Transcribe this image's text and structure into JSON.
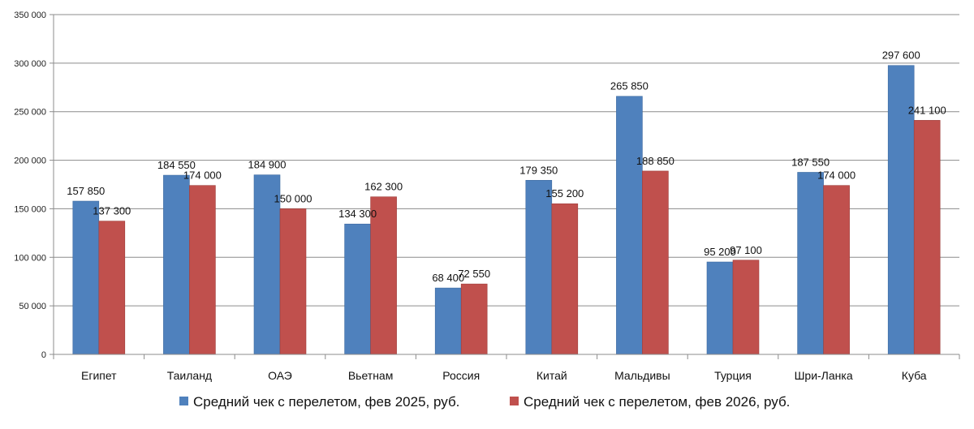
{
  "chart_data": {
    "type": "bar",
    "categories": [
      "Египет",
      "Таиланд",
      "ОАЭ",
      "Вьетнам",
      "Россия",
      "Китай",
      "Мальдивы",
      "Турция",
      "Шри-Ланка",
      "Куба"
    ],
    "series": [
      {
        "name": "Средний чек с перелетом, фев 2025, руб.",
        "color": "#4F81BD",
        "values": [
          157850,
          184550,
          184900,
          134300,
          68400,
          179350,
          265850,
          95200,
          187550,
          297600
        ],
        "labels": [
          "157 850",
          "184 550",
          "184 900",
          "134 300",
          "68 400",
          "179 350",
          "265 850",
          "95 200",
          "187 550",
          "297 600"
        ]
      },
      {
        "name": "Средний чек с перелетом, фев 2026, руб.",
        "color": "#C0504D",
        "values": [
          137300,
          174000,
          150000,
          162300,
          72550,
          155200,
          188850,
          97100,
          174000,
          241100
        ],
        "labels": [
          "137 300",
          "174 000",
          "150 000",
          "162 300",
          "72 550",
          "155 200",
          "188 850",
          "97 100",
          "174 000",
          "241 100"
        ]
      }
    ],
    "ylim": [
      0,
      350000
    ],
    "yticks": [
      0,
      50000,
      100000,
      150000,
      200000,
      250000,
      300000,
      350000
    ],
    "ytick_labels": [
      "0",
      "50 000",
      "100 000",
      "150 000",
      "200 000",
      "250 000",
      "300 000",
      "350 000"
    ],
    "grid": true,
    "legend_position": "bottom"
  }
}
